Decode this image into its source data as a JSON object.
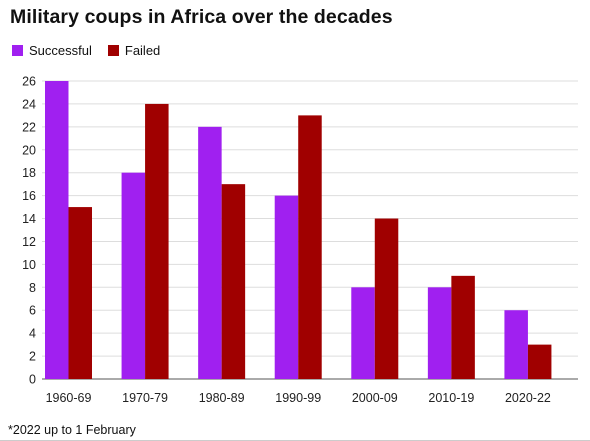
{
  "chart_data": {
    "type": "bar",
    "title": "Military coups in Africa over the decades",
    "categories": [
      "1960-69",
      "1970-79",
      "1980-89",
      "1990-99",
      "2000-09",
      "2010-19",
      "2020-22"
    ],
    "series": [
      {
        "name": "Successful",
        "color": "#a020f0",
        "values": [
          26,
          18,
          22,
          16,
          8,
          8,
          6
        ]
      },
      {
        "name": "Failed",
        "color": "#a00000",
        "values": [
          15,
          24,
          17,
          23,
          14,
          9,
          3
        ]
      }
    ],
    "yticks": [
      "0",
      "2",
      "4",
      "6",
      "8",
      "10",
      "12",
      "14",
      "16",
      "18",
      "20",
      "22",
      "24",
      "26"
    ],
    "ylim": [
      0,
      26
    ],
    "grid": true,
    "legend_placement": "top-left",
    "footnote": "*2022 up to 1 February"
  }
}
